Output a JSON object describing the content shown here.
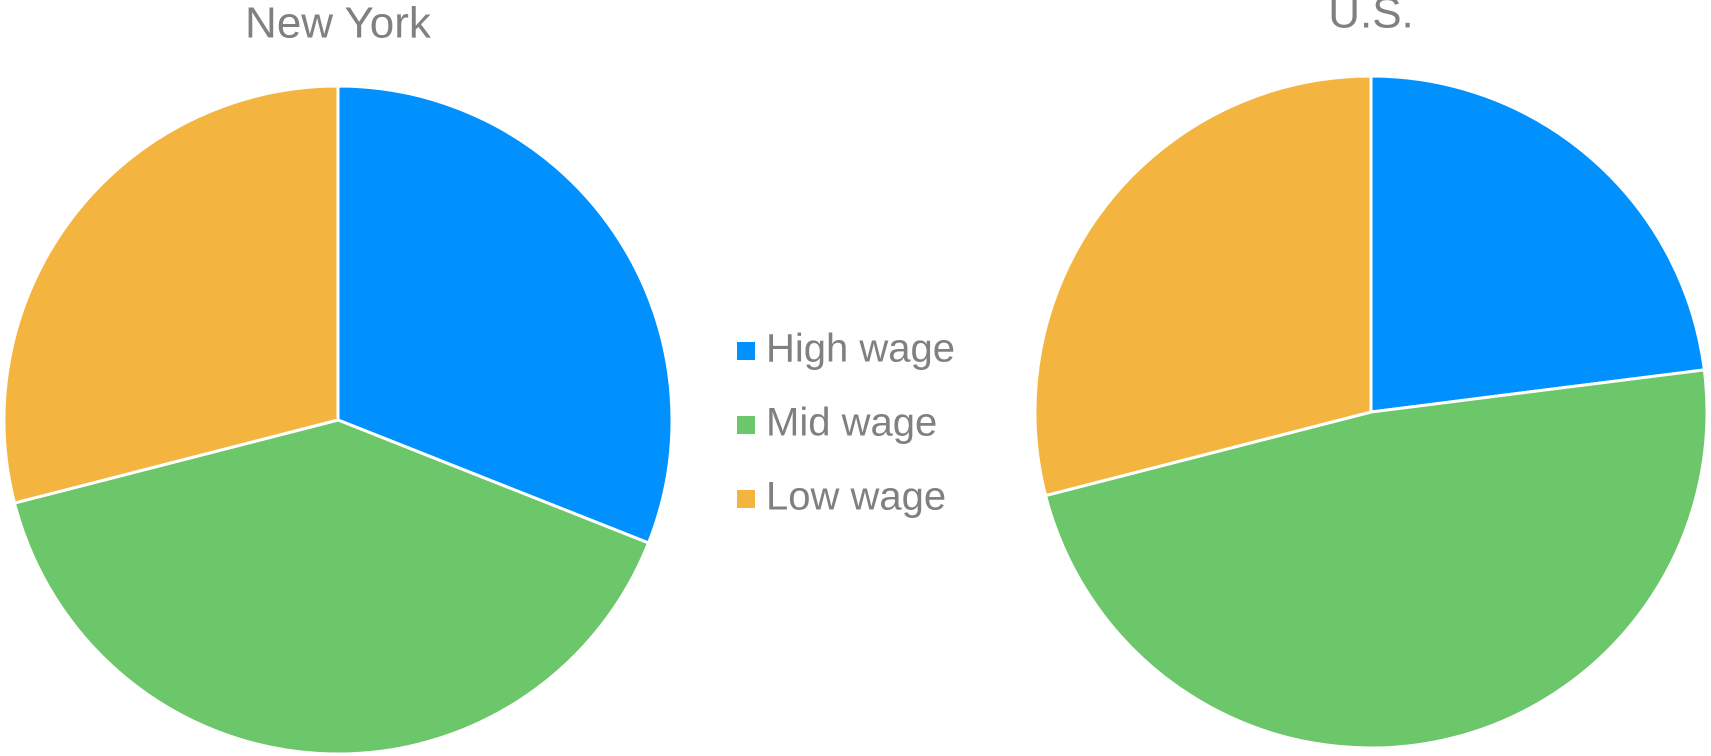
{
  "chart_data": [
    {
      "type": "pie",
      "title": "New York",
      "values": [
        31,
        40,
        29
      ],
      "colors": [
        "#0091ff",
        "#6cc66a",
        "#f3b53f"
      ]
    },
    {
      "type": "pie",
      "title": "U.S.",
      "values": [
        23,
        48,
        29
      ],
      "colors": [
        "#0091ff",
        "#6cc66a",
        "#f3b53f"
      ]
    }
  ],
  "legend": {
    "labels": [
      "High wage",
      "Mid wage",
      "Low wage"
    ]
  }
}
